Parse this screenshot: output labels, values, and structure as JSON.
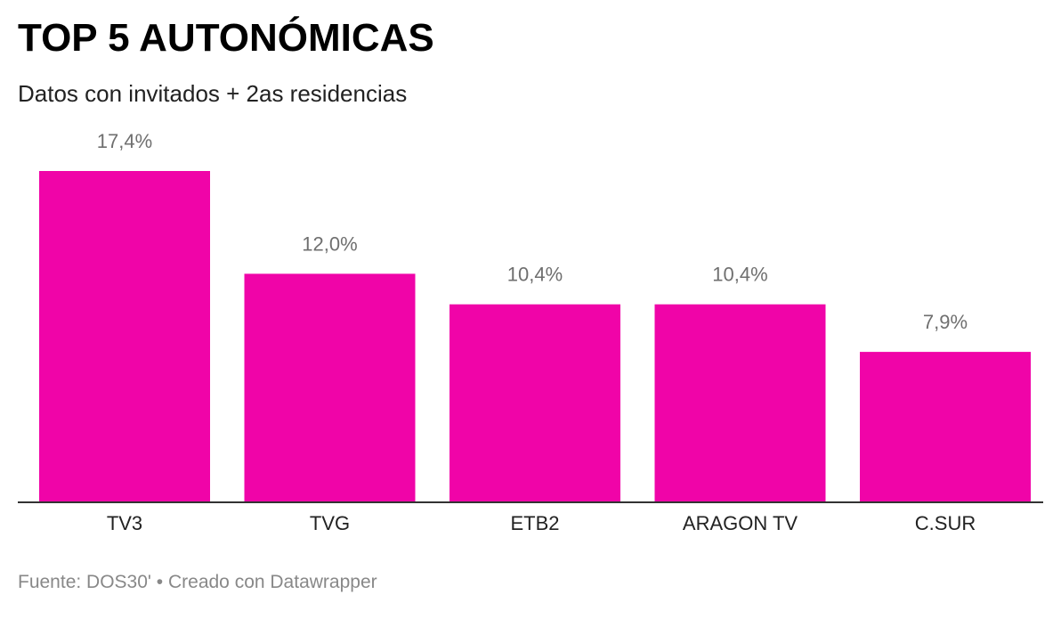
{
  "header": {
    "title": "TOP 5 AUTONÓMICAS",
    "subtitle": "Datos con invitados + 2as residencias"
  },
  "footer": {
    "source": "Fuente: DOS30'",
    "separator": "•",
    "credit": "Creado con Datawrapper"
  },
  "colors": {
    "bar": "#f004a8",
    "baseline": "#333333",
    "value_label": "#6f6f6f"
  },
  "chart_data": {
    "type": "bar",
    "categories": [
      "TV3",
      "TVG",
      "ETB2",
      "ARAGON TV",
      "C.SUR"
    ],
    "values": [
      17.4,
      12.0,
      10.4,
      10.4,
      7.9
    ],
    "value_labels": [
      "17,4%",
      "12,0%",
      "10,4%",
      "10,4%",
      "7,9%"
    ],
    "title": "TOP 5 AUTONÓMICAS",
    "subtitle": "Datos con invitados + 2as residencias",
    "ylim": [
      0,
      17.4
    ],
    "grid": false,
    "legend": "none"
  }
}
